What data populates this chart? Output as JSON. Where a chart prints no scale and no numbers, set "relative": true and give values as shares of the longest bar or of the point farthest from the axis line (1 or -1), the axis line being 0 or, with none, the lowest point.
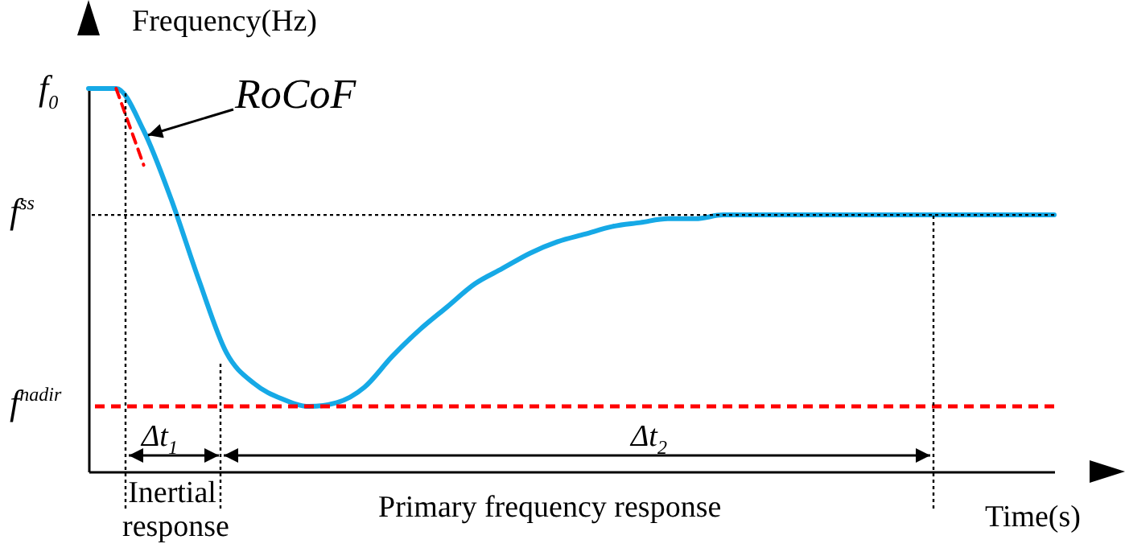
{
  "chart_data": {
    "type": "line",
    "relative": true,
    "xlabel": "Time(s)",
    "ylabel": "Frequency(Hz)",
    "categories": [
      null,
      null,
      null,
      null,
      null,
      null,
      null,
      null,
      null,
      null,
      null,
      null,
      null,
      null,
      null,
      null,
      null,
      null,
      null,
      null,
      null,
      null,
      null,
      null,
      null,
      null,
      null,
      null,
      null,
      null,
      null,
      null,
      null,
      null,
      null,
      null
    ],
    "series": [
      {
        "color": "#16a9e6",
        "values": [
          1,
          1,
          0.89,
          0.71,
          0.5,
          0.31,
          0.23,
          0.19,
          0.17,
          0.18,
          0.22,
          0.3,
          0.37,
          0.43,
          0.49,
          0.53,
          0.57,
          0.6,
          0.62,
          0.64,
          0.65,
          0.66,
          0.66,
          0.67,
          0.67,
          0.67,
          0.67,
          0.67,
          0.67,
          0.67,
          0.67,
          0.67,
          0.67,
          0.67,
          0.67,
          0.67
        ]
      },
      {
        "type": "line",
        "color": "#ff0000",
        "line_style": "dashed",
        "values": [
          null,
          1,
          0.8,
          null,
          null,
          null,
          null,
          null,
          null,
          null,
          null,
          null,
          null,
          null,
          null,
          null,
          null,
          null,
          null,
          null,
          null,
          null,
          null,
          null,
          null,
          null,
          null,
          null,
          null,
          null,
          null,
          null,
          null,
          null,
          null,
          null
        ]
      }
    ],
    "ref_lines": [
      {
        "axis": "y",
        "value": 0.67,
        "label": "f$^{ss}$",
        "color": "#000000",
        "line_style": "dotted"
      },
      {
        "axis": "y",
        "value": 0.17,
        "label": "f$^{nadir}$",
        "color": "#ff0000",
        "line_style": "dashed"
      }
    ],
    "annotations": [
      "f$_{0}$",
      "RoCoF",
      "Δt$_{1}$",
      "Δt$_{2}$",
      "Inertial response",
      "Primary frequency response"
    ]
  }
}
